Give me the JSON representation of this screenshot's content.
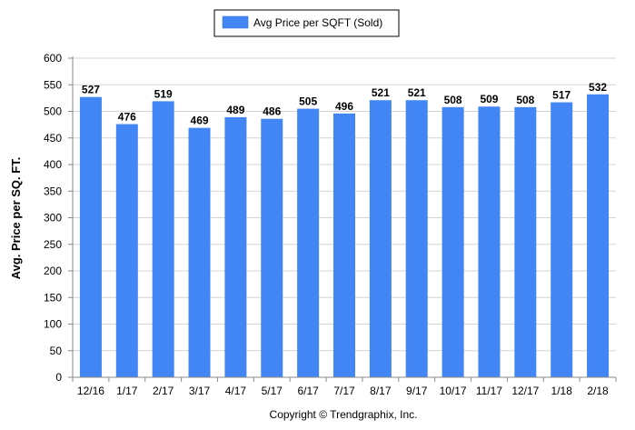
{
  "chart_data": {
    "type": "bar",
    "categories": [
      "12/16",
      "1/17",
      "2/17",
      "3/17",
      "4/17",
      "5/17",
      "6/17",
      "7/17",
      "8/17",
      "9/17",
      "10/17",
      "11/17",
      "12/17",
      "1/18",
      "2/18"
    ],
    "series": [
      {
        "name": "Avg Price per SQFT (Sold)",
        "values": [
          527,
          476,
          519,
          469,
          489,
          486,
          505,
          496,
          521,
          521,
          508,
          509,
          508,
          517,
          532
        ],
        "color": "#4285f4"
      }
    ],
    "title": "",
    "xlabel": "",
    "ylabel": "Avg. Price per SQ. FT.",
    "ylim": [
      0,
      600
    ],
    "yticks": [
      0,
      50,
      100,
      150,
      200,
      250,
      300,
      350,
      400,
      450,
      500,
      550,
      600
    ],
    "grid": true,
    "legend": "top-center",
    "data_labels": true
  },
  "footer": {
    "copyright": "Copyright © Trendgraphix, Inc."
  }
}
